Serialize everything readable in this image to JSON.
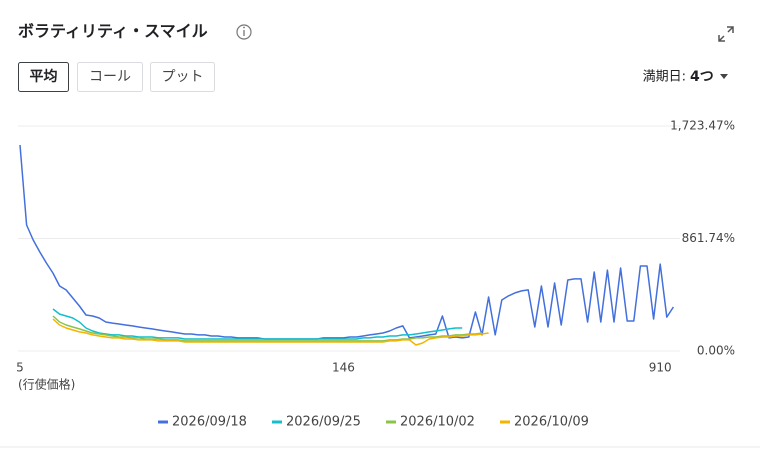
{
  "ui": {
    "buttons": [
      "平均",
      "コール",
      "プット"
    ],
    "expiry_label": "満期日:",
    "expiry_value": "4つ"
  },
  "chart_data": {
    "type": "line",
    "title": "ボラティリティ・スマイル",
    "x_label": "(行使価格)",
    "categories": [
      "5",
      null,
      null,
      null,
      null,
      null,
      null,
      null,
      null,
      null,
      null,
      null,
      null,
      null,
      null,
      null,
      null,
      null,
      null,
      null,
      null,
      null,
      null,
      null,
      null,
      null,
      null,
      null,
      null,
      null,
      null,
      null,
      null,
      null,
      null,
      null,
      null,
      null,
      null,
      null,
      null,
      null,
      null,
      null,
      null,
      null,
      null,
      null,
      null,
      "146",
      null,
      null,
      null,
      null,
      null,
      null,
      null,
      null,
      null,
      null,
      null,
      null,
      null,
      null,
      null,
      null,
      null,
      null,
      null,
      null,
      null,
      null,
      null,
      null,
      null,
      null,
      null,
      null,
      null,
      null,
      null,
      null,
      null,
      null,
      null,
      null,
      null,
      null,
      null,
      null,
      null,
      null,
      null,
      null,
      null,
      null,
      null,
      "910",
      null,
      null
    ],
    "ylim": [
      0,
      1723.47
    ],
    "yticks": [
      {
        "value": 0,
        "label": "0.00%"
      },
      {
        "value": 861.74,
        "label": "861.74%"
      },
      {
        "value": 1723.47,
        "label": "1,723.47%"
      }
    ],
    "grid": true,
    "legend": "bottom",
    "series": [
      {
        "name": "2026/09/18",
        "color": "#4470dd",
        "values": [
          1578,
          965,
          850,
          758,
          674,
          597,
          498,
          467,
          406,
          345,
          276,
          268,
          253,
          222,
          214,
          207,
          199,
          192,
          184,
          176,
          169,
          161,
          153,
          146,
          138,
          130,
          130,
          123,
          123,
          115,
          115,
          107,
          107,
          100,
          100,
          100,
          100,
          92,
          92,
          92,
          92,
          92,
          92,
          92,
          92,
          92,
          100,
          100,
          100,
          100,
          107,
          107,
          115,
          123,
          130,
          138,
          153,
          176,
          192,
          100,
          107,
          115,
          123,
          130,
          268,
          100,
          107,
          100,
          107,
          299,
          123,
          414,
          123,
          391,
          422,
          445,
          460,
          468,
          184,
          498,
          184,
          521,
          199,
          544,
          552,
          552,
          222,
          605,
          222,
          620,
          222,
          636,
          230,
          230,
          651,
          651,
          245,
          666,
          260,
          337
        ]
      },
      {
        "name": "2026/09/25",
        "color": "#12bfca",
        "values": [
          null,
          null,
          null,
          null,
          null,
          322,
          283,
          268,
          253,
          222,
          176,
          153,
          138,
          130,
          123,
          123,
          115,
          115,
          107,
          107,
          107,
          100,
          100,
          100,
          100,
          92,
          92,
          92,
          92,
          92,
          92,
          92,
          92,
          92,
          92,
          92,
          92,
          92,
          92,
          92,
          92,
          92,
          92,
          92,
          92,
          92,
          92,
          92,
          92,
          92,
          92,
          92,
          100,
          100,
          107,
          107,
          115,
          115,
          123,
          123,
          130,
          138,
          146,
          153,
          161,
          169,
          176,
          176,
          null,
          null,
          null,
          null,
          null,
          null,
          null,
          null,
          null,
          null,
          null,
          null,
          null,
          null,
          null,
          null,
          null,
          null,
          null,
          null,
          null,
          null,
          null,
          null,
          null,
          null,
          null,
          null,
          null,
          null,
          null,
          null
        ]
      },
      {
        "name": "2026/10/02",
        "color": "#8bc34a",
        "values": [
          null,
          null,
          null,
          null,
          null,
          268,
          222,
          199,
          184,
          169,
          153,
          138,
          130,
          123,
          115,
          107,
          107,
          100,
          100,
          92,
          92,
          92,
          85,
          85,
          85,
          77,
          77,
          77,
          77,
          77,
          77,
          77,
          77,
          77,
          77,
          77,
          77,
          77,
          77,
          77,
          77,
          77,
          77,
          77,
          77,
          77,
          77,
          77,
          77,
          77,
          77,
          77,
          77,
          77,
          77,
          77,
          85,
          85,
          92,
          92,
          100,
          100,
          107,
          107,
          115,
          115,
          123,
          123,
          130,
          130,
          138,
          null,
          null,
          null,
          null,
          null,
          null,
          null,
          null,
          null,
          null,
          null,
          null,
          null,
          null,
          null,
          null,
          null,
          null,
          null,
          null,
          null,
          null,
          null,
          null,
          null,
          null,
          null,
          null,
          null
        ]
      },
      {
        "name": "2026/10/09",
        "color": "#f4b400",
        "values": [
          null,
          null,
          null,
          null,
          null,
          245,
          199,
          176,
          161,
          146,
          138,
          123,
          115,
          107,
          100,
          100,
          92,
          92,
          85,
          85,
          85,
          77,
          77,
          77,
          77,
          69,
          69,
          69,
          69,
          69,
          69,
          69,
          69,
          69,
          69,
          69,
          69,
          69,
          69,
          69,
          69,
          69,
          69,
          69,
          69,
          69,
          69,
          69,
          69,
          69,
          69,
          69,
          69,
          69,
          69,
          69,
          77,
          77,
          85,
          85,
          46,
          61,
          92,
          100,
          107,
          107,
          115,
          115,
          123,
          123,
          130,
          138,
          null,
          null,
          null,
          null,
          null,
          null,
          null,
          null,
          null,
          null,
          null,
          null,
          null,
          null,
          null,
          null,
          null,
          null,
          null,
          null,
          null,
          null,
          null,
          null,
          null,
          null,
          null,
          null
        ]
      }
    ]
  }
}
